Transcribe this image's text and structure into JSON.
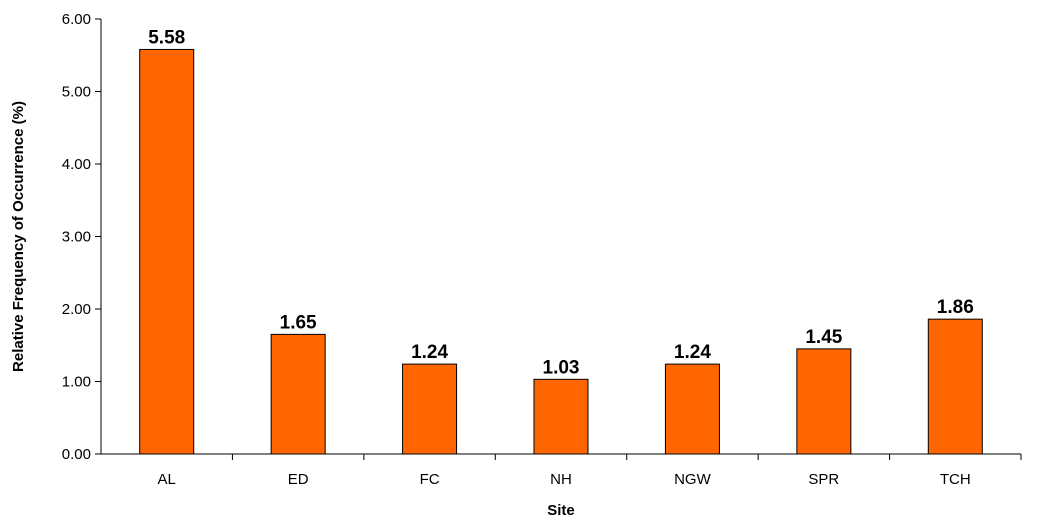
{
  "chart_data": {
    "type": "bar",
    "title": "",
    "xlabel": "Site",
    "ylabel": "Relative Frequency of Occurrence (%)",
    "categories": [
      "AL",
      "ED",
      "FC",
      "NH",
      "NGW",
      "SPR",
      "TCH"
    ],
    "values": [
      5.58,
      1.65,
      1.24,
      1.03,
      1.24,
      1.45,
      1.86
    ],
    "data_labels": [
      "5.58",
      "1.65",
      "1.24",
      "1.03",
      "1.24",
      "1.45",
      "1.86"
    ],
    "ylim": [
      0,
      6
    ],
    "yticks": [
      "0.00",
      "1.00",
      "2.00",
      "3.00",
      "4.00",
      "5.00",
      "6.00"
    ],
    "grid": false,
    "legend": "none",
    "bar_color": "#ff6600",
    "bar_outline": "#000000"
  }
}
